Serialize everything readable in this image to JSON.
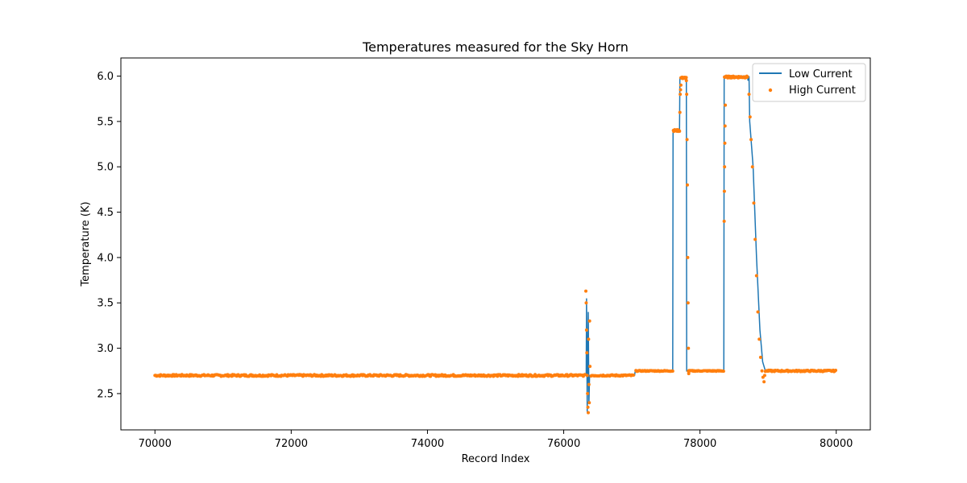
{
  "chart_data": {
    "type": "line",
    "title": "Temperatures measured for the Sky Horn",
    "xlabel": "Record Index",
    "ylabel": "Temperature (K)",
    "xlim": [
      69500,
      80500
    ],
    "ylim": [
      2.1,
      6.2
    ],
    "x_ticks": [
      70000,
      72000,
      74000,
      76000,
      78000,
      80000
    ],
    "y_ticks": [
      2.5,
      3.0,
      3.5,
      4.0,
      4.5,
      5.0,
      5.5,
      6.0
    ],
    "x_tick_labels": [
      "70000",
      "72000",
      "74000",
      "76000",
      "78000",
      "80000"
    ],
    "y_tick_labels": [
      "2.5",
      "3.0",
      "3.5",
      "4.0",
      "4.5",
      "5.0",
      "5.5",
      "6.0"
    ],
    "grid": false,
    "legend_position": "top-right",
    "series": [
      {
        "name": "Low Current",
        "style": "line",
        "color": "#1f77b4",
        "points": [
          [
            70000,
            2.7
          ],
          [
            76330,
            2.7
          ],
          [
            76335,
            3.55
          ],
          [
            76345,
            2.3
          ],
          [
            76360,
            3.4
          ],
          [
            76370,
            2.4
          ],
          [
            76380,
            2.7
          ],
          [
            77040,
            2.7
          ],
          [
            77050,
            2.75
          ],
          [
            77600,
            2.75
          ],
          [
            77605,
            5.4
          ],
          [
            77700,
            5.4
          ],
          [
            77705,
            5.98
          ],
          [
            77800,
            5.98
          ],
          [
            77805,
            2.75
          ],
          [
            78350,
            2.75
          ],
          [
            78355,
            6.0
          ],
          [
            78700,
            6.0
          ],
          [
            78705,
            5.95
          ],
          [
            78720,
            6.0
          ],
          [
            78730,
            5.5
          ],
          [
            78780,
            5.0
          ],
          [
            78830,
            4.0
          ],
          [
            78880,
            3.2
          ],
          [
            78920,
            2.85
          ],
          [
            78960,
            2.75
          ],
          [
            80000,
            2.75
          ]
        ]
      },
      {
        "name": "High Current",
        "style": "scatter",
        "color": "#ff7f0e",
        "segments": [
          {
            "x0": 70000,
            "x1": 76320,
            "step": 12,
            "base": 2.7,
            "noise": 0.01
          },
          {
            "x0": 76400,
            "x1": 77030,
            "step": 12,
            "base": 2.7,
            "noise": 0.008
          },
          {
            "x0": 77060,
            "x1": 77600,
            "step": 12,
            "base": 2.75,
            "noise": 0.005
          },
          {
            "x0": 77610,
            "x1": 77700,
            "step": 6,
            "base": 5.4,
            "noise": 0.01
          },
          {
            "x0": 77720,
            "x1": 77800,
            "step": 6,
            "base": 5.98,
            "noise": 0.01
          },
          {
            "x0": 77830,
            "x1": 78350,
            "step": 12,
            "base": 2.75,
            "noise": 0.005
          },
          {
            "x0": 78360,
            "x1": 78700,
            "step": 8,
            "base": 5.99,
            "noise": 0.01
          },
          {
            "x0": 78960,
            "x1": 80000,
            "step": 12,
            "base": 2.75,
            "noise": 0.008
          }
        ],
        "extra_points": [
          [
            76325,
            3.63
          ],
          [
            76330,
            3.5
          ],
          [
            76335,
            3.2
          ],
          [
            76340,
            2.95
          ],
          [
            76345,
            2.7
          ],
          [
            76350,
            2.5
          ],
          [
            76355,
            2.35
          ],
          [
            76360,
            2.29
          ],
          [
            76365,
            3.1
          ],
          [
            76370,
            2.6
          ],
          [
            76375,
            2.4
          ],
          [
            76380,
            3.3
          ],
          [
            76385,
            2.8
          ],
          [
            77705,
            5.6
          ],
          [
            77710,
            5.8
          ],
          [
            77715,
            5.85
          ],
          [
            77720,
            5.9
          ],
          [
            77800,
            5.95
          ],
          [
            77805,
            5.8
          ],
          [
            77810,
            5.3
          ],
          [
            77815,
            4.8
          ],
          [
            77820,
            4.0
          ],
          [
            77825,
            3.5
          ],
          [
            77830,
            3.0
          ],
          [
            77835,
            2.72
          ],
          [
            78355,
            4.4
          ],
          [
            78358,
            4.73
          ],
          [
            78361,
            5.0
          ],
          [
            78365,
            5.26
          ],
          [
            78368,
            5.45
          ],
          [
            78372,
            5.68
          ],
          [
            78720,
            5.8
          ],
          [
            78735,
            5.55
          ],
          [
            78750,
            5.3
          ],
          [
            78770,
            5.0
          ],
          [
            78790,
            4.6
          ],
          [
            78810,
            4.2
          ],
          [
            78830,
            3.8
          ],
          [
            78850,
            3.4
          ],
          [
            78870,
            3.1
          ],
          [
            78890,
            2.9
          ],
          [
            78910,
            2.75
          ],
          [
            78925,
            2.68
          ],
          [
            78940,
            2.63
          ],
          [
            78950,
            2.7
          ]
        ]
      }
    ]
  }
}
